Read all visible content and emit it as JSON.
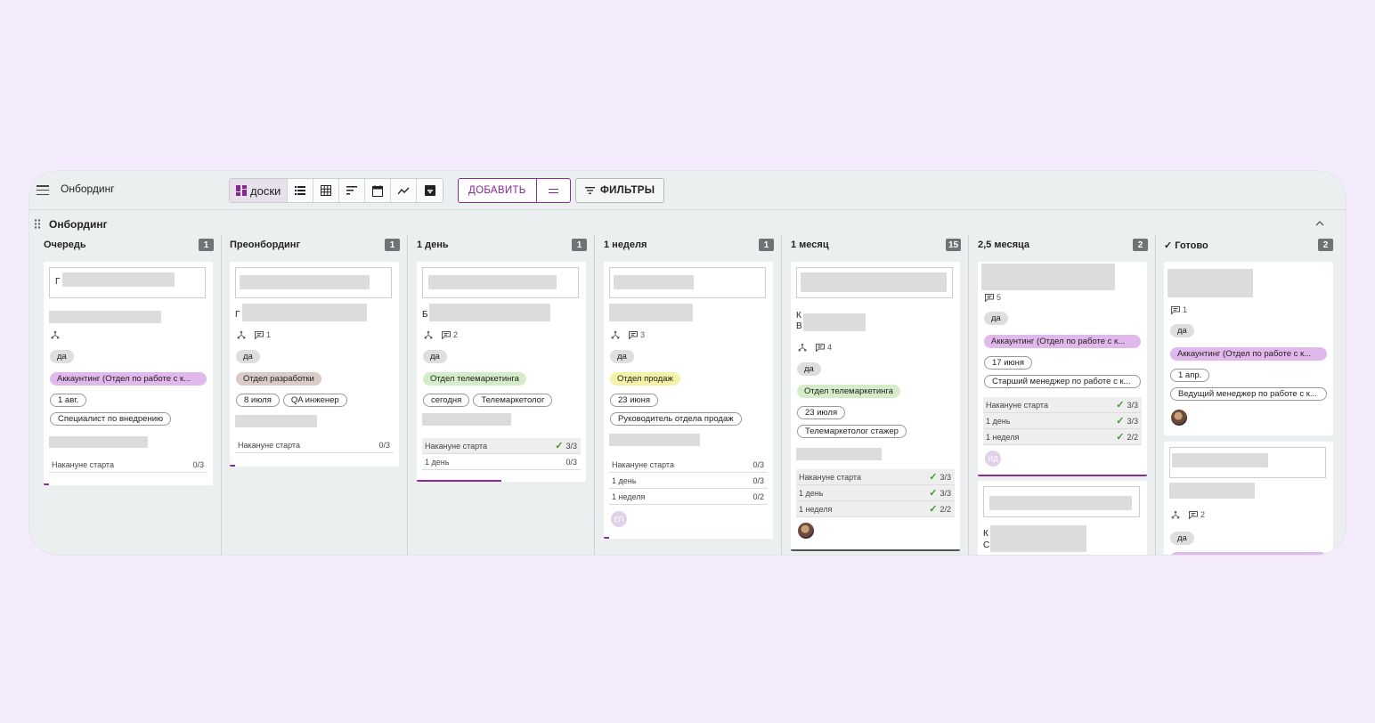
{
  "app": {
    "title": "Онбординг"
  },
  "toolbar": {
    "views": [
      {
        "name": "boards",
        "label": "доски",
        "icon": "board-icon",
        "active": true
      },
      {
        "name": "list",
        "icon": "list-icon"
      },
      {
        "name": "table",
        "icon": "table-icon"
      },
      {
        "name": "gantt",
        "icon": "gantt-icon"
      },
      {
        "name": "calendar",
        "icon": "calendar-icon"
      },
      {
        "name": "chart",
        "icon": "chart-icon"
      },
      {
        "name": "archive",
        "icon": "archive-icon"
      }
    ],
    "add_label": "ДОБАВИТЬ",
    "filters_label": "ФИЛЬТРЫ"
  },
  "colors": {
    "accent": "#86278f",
    "pink_tag": "#e1b8eb",
    "green_tag": "#d5ecc9",
    "yellow_tag": "#f4f2a6",
    "check": "#3e9a2d"
  },
  "board": {
    "title": "Онбординг",
    "columns": [
      {
        "title": "Очередь",
        "count": "1",
        "cards": [
          {
            "comments": "",
            "tags": [
              "да",
              "Аккаунтинг (Отдел по работе с к..."
            ],
            "chips": [
              "1 авг.",
              "Специалист по внедрению"
            ],
            "checklist": [
              {
                "label": "Накануне старта",
                "value": "0/3"
              }
            ]
          }
        ]
      },
      {
        "title": "Преонбординг",
        "count": "1",
        "cards": [
          {
            "comments": "1",
            "frag": "Г",
            "tags": [
              "да",
              "Отдел разработки"
            ],
            "chips": [
              "8 июля",
              "QA инженер"
            ],
            "checklist": [
              {
                "label": "Накануне старта",
                "value": "0/3"
              }
            ]
          }
        ]
      },
      {
        "title": "1 день",
        "count": "1",
        "cards": [
          {
            "comments": "2",
            "frag": "Б",
            "tags": [
              "да",
              "Отдел телемаркетинга"
            ],
            "chips": [
              "сегодня",
              "Телемаркетолог"
            ],
            "checklist": [
              {
                "label": "Накануне старта",
                "value": "3/3"
              },
              {
                "label": "1 день",
                "value": "0/3"
              }
            ]
          }
        ]
      },
      {
        "title": "1 неделя",
        "count": "1",
        "cards": [
          {
            "comments": "3",
            "tags": [
              "да",
              "Отдел продаж"
            ],
            "chips": [
              "23 июня",
              "Руководитель отдела продаж"
            ],
            "checklist": [
              {
                "label": "Накануне старта",
                "value": "0/3"
              },
              {
                "label": "1 день",
                "value": "0/3"
              },
              {
                "label": "1 неделя",
                "value": "0/2"
              }
            ],
            "avatar": "ЕП"
          }
        ]
      },
      {
        "title": "1 месяц",
        "count": "15",
        "cards": [
          {
            "comments": "4",
            "frag": "К",
            "frag2": "В",
            "tags": [
              "да",
              "Отдел телемаркетинга"
            ],
            "chips": [
              "23 июля",
              "Телемаркетолог стажер"
            ],
            "checklist": [
              {
                "label": "Накануне старта",
                "value": "3/3"
              },
              {
                "label": "1 день",
                "value": "3/3"
              },
              {
                "label": "1 неделя",
                "value": "2/2"
              }
            ]
          }
        ]
      },
      {
        "title": "2,5 месяца",
        "count": "2",
        "cards": [
          {
            "comments": "5",
            "tags": [
              "да",
              "Аккаунтинг (Отдел по работе с к..."
            ],
            "chips": [
              "17 июня",
              "Старший менеджер по работе с к..."
            ],
            "checklist": [
              {
                "label": "Накануне старта",
                "value": "3/3"
              },
              {
                "label": "1 день",
                "value": "3/3"
              },
              {
                "label": "1 неделя",
                "value": "2/2"
              }
            ],
            "avatar": "ИД"
          },
          {
            "frag": "К",
            "frag2": "С"
          }
        ]
      },
      {
        "title": "Готово",
        "count": "2",
        "cards": [
          {
            "comments": "1",
            "tags": [
              "да",
              "Аккаунтинг (Отдел по работе с к..."
            ],
            "chips": [
              "1 апр.",
              "Ведущий менеджер по работе с к..."
            ]
          },
          {
            "comments": "2",
            "tags": [
              "да"
            ]
          }
        ]
      }
    ]
  }
}
